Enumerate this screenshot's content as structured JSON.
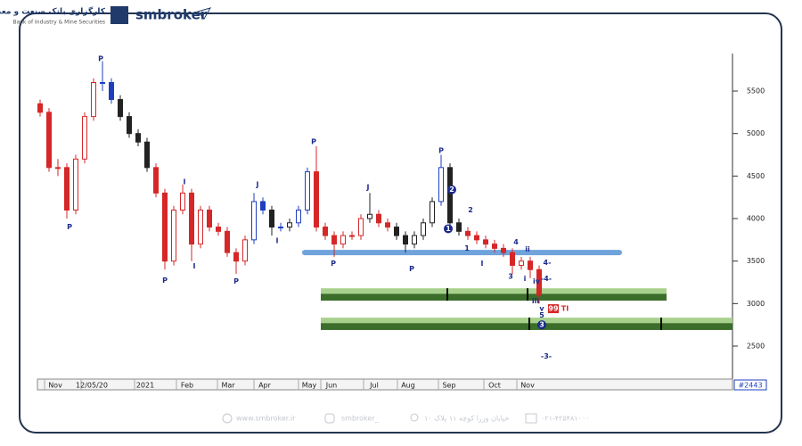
{
  "header": {
    "logo_text": "کارگزاری بانک صنعت و معدن",
    "logo_subtext": "Bank of Industry & Mine Securities",
    "brand": "smbroker"
  },
  "footer": {
    "website": "www.smbroker.ir",
    "instagram": "smbroker_",
    "address": "خیابان وزرا کوچه ۱۱ پلاک ۱۰",
    "phone": "۰۲۱-۴۲۵۴۸۱۰۰۰"
  },
  "chart_data": {
    "type": "candlestick",
    "ohlc": [
      [
        5350,
        5400,
        5200,
        5250
      ],
      [
        5250,
        5300,
        4550,
        4600
      ],
      [
        4600,
        4700,
        4500,
        4600
      ],
      [
        4600,
        4650,
        4000,
        4100
      ],
      [
        4100,
        4750,
        4050,
        4700
      ],
      [
        4700,
        5250,
        4650,
        5200
      ],
      [
        5200,
        5650,
        5150,
        5600
      ],
      [
        5600,
        5850,
        5500,
        5600
      ],
      [
        5600,
        5650,
        5350,
        5400
      ],
      [
        5400,
        5450,
        5150,
        5200
      ],
      [
        5200,
        5250,
        4950,
        5000
      ],
      [
        5000,
        5050,
        4850,
        4900
      ],
      [
        4900,
        4950,
        4550,
        4600
      ],
      [
        4600,
        4650,
        4250,
        4300
      ],
      [
        4300,
        4350,
        3400,
        3500
      ],
      [
        3500,
        4150,
        3450,
        4100
      ],
      [
        4100,
        4400,
        4050,
        4300
      ],
      [
        4300,
        4350,
        3500,
        3700
      ],
      [
        3700,
        4150,
        3650,
        4100
      ],
      [
        4100,
        4150,
        3850,
        3900
      ],
      [
        3900,
        3950,
        3800,
        3850
      ],
      [
        3850,
        3900,
        3550,
        3600
      ],
      [
        3600,
        3650,
        3350,
        3500
      ],
      [
        3500,
        3800,
        3450,
        3750
      ],
      [
        3750,
        4300,
        3700,
        4200
      ],
      [
        4200,
        4250,
        4050,
        4100
      ],
      [
        4100,
        4150,
        3800,
        3900
      ],
      [
        3900,
        3950,
        3850,
        3900
      ],
      [
        3900,
        4000,
        3850,
        3950
      ],
      [
        3950,
        4150,
        3900,
        4100
      ],
      [
        4100,
        4600,
        4050,
        4550
      ],
      [
        4550,
        4850,
        3850,
        3900
      ],
      [
        3900,
        3950,
        3750,
        3800
      ],
      [
        3800,
        3850,
        3550,
        3700
      ],
      [
        3700,
        3850,
        3650,
        3800
      ],
      [
        3800,
        3850,
        3750,
        3800
      ],
      [
        3800,
        4050,
        3750,
        4000
      ],
      [
        4000,
        4300,
        3950,
        4050
      ],
      [
        4050,
        4100,
        3900,
        3950
      ],
      [
        3950,
        4000,
        3850,
        3900
      ],
      [
        3900,
        3950,
        3750,
        3800
      ],
      [
        3800,
        3850,
        3600,
        3700
      ],
      [
        3700,
        3850,
        3650,
        3800
      ],
      [
        3800,
        4000,
        3750,
        3950
      ],
      [
        3950,
        4250,
        3900,
        4200
      ],
      [
        4200,
        4750,
        4150,
        4600
      ],
      [
        4600,
        4650,
        3900,
        3950
      ],
      [
        3950,
        4000,
        3800,
        3850
      ],
      [
        3850,
        3900,
        3750,
        3800
      ],
      [
        3800,
        3850,
        3700,
        3750
      ],
      [
        3750,
        3800,
        3650,
        3700
      ],
      [
        3700,
        3750,
        3600,
        3650
      ],
      [
        3650,
        3700,
        3550,
        3600
      ],
      [
        3600,
        3650,
        3350,
        3450
      ],
      [
        3450,
        3550,
        3400,
        3500
      ],
      [
        3500,
        3550,
        3300,
        3400
      ],
      [
        3400,
        3450,
        3000,
        3100
      ]
    ],
    "candle_colors": [
      "#d62728",
      "#d62728",
      "#d62728",
      "#d62728",
      "#d62728",
      "#d62728",
      "#d62728",
      "#1f3fbf",
      "#1f3fbf",
      "#222",
      "#222",
      "#222",
      "#222",
      "#d62728",
      "#d62728",
      "#d62728",
      "#d62728",
      "#d62728",
      "#d62728",
      "#d62728",
      "#d62728",
      "#d62728",
      "#d62728",
      "#d62728",
      "#1f3fbf",
      "#1f3fbf",
      "#222",
      "#1f3fbf",
      "#222",
      "#1f3fbf",
      "#1f3fbf",
      "#d62728",
      "#d62728",
      "#d62728",
      "#d62728",
      "#d62728",
      "#d62728",
      "#222",
      "#d62728",
      "#d62728",
      "#222",
      "#222",
      "#222",
      "#222",
      "#222",
      "#1f3fbf",
      "#222",
      "#222",
      "#d62728",
      "#d62728",
      "#d62728",
      "#d62728",
      "#d62728",
      "#d62728",
      "#d62728",
      "#d62728",
      "#d62728"
    ],
    "xlim": [
      -0.3,
      77.7
    ],
    "xticks": [
      {
        "value": 1.7,
        "label": "Nov"
      },
      {
        "value": 5.8,
        "label": "12/05/20"
      },
      {
        "value": 11.8,
        "label": "2021"
      },
      {
        "value": 16.5,
        "label": "Feb"
      },
      {
        "value": 21.1,
        "label": "Mar"
      },
      {
        "value": 25.2,
        "label": "Apr"
      },
      {
        "value": 30.2,
        "label": "May"
      },
      {
        "value": 32.7,
        "label": "Jun"
      },
      {
        "value": 37.5,
        "label": "Jul"
      },
      {
        "value": 41.3,
        "label": "Aug"
      },
      {
        "value": 45.9,
        "label": "Sep"
      },
      {
        "value": 51,
        "label": "Oct"
      },
      {
        "value": 54.7,
        "label": "Nov"
      }
    ],
    "ylim": [
      2112,
      5941
    ],
    "yticks": [
      2500,
      3000,
      3500,
      4000,
      4500,
      5000,
      5500
    ],
    "last_bar_label": "#2443",
    "levels": [
      {
        "y": 3600,
        "from": 29.7,
        "to": 65,
        "color": "#6fa3dc"
      }
    ],
    "zones": [
      {
        "top": 3180,
        "bottom": 3035,
        "from": 31.5,
        "to": 70.3,
        "color": "#a9d18e",
        "inner_color": "#3b6e2a",
        "marks": [
          45.7,
          54.7
        ]
      },
      {
        "top": 2835,
        "bottom": 2690,
        "from": 31.5,
        "to": 77.7,
        "color": "#a9d18e",
        "inner_color": "#3b6e2a",
        "marks": [
          54.9,
          69.7
        ]
      }
    ],
    "annotations": [
      {
        "text": "P",
        "x": 6.8,
        "y": 5880
      },
      {
        "text": "P",
        "x": 3.3,
        "y": 3900
      },
      {
        "text": "P",
        "x": 14,
        "y": 3270
      },
      {
        "text": "I",
        "x": 16.2,
        "y": 4430
      },
      {
        "text": "I",
        "x": 17.3,
        "y": 3440
      },
      {
        "text": "P",
        "x": 22,
        "y": 3260
      },
      {
        "text": "J",
        "x": 24.4,
        "y": 4400
      },
      {
        "text": "I",
        "x": 26.6,
        "y": 3740
      },
      {
        "text": "P",
        "x": 30.7,
        "y": 4900
      },
      {
        "text": "P",
        "x": 32.9,
        "y": 3470
      },
      {
        "text": "J",
        "x": 36.8,
        "y": 4370
      },
      {
        "text": "P",
        "x": 41.7,
        "y": 3410
      },
      {
        "text": "P",
        "x": 45,
        "y": 4800
      },
      {
        "text": "2",
        "x": 46.2,
        "y": 4340,
        "circle": true
      },
      {
        "text": "1",
        "x": 45.8,
        "y": 3880,
        "circle": true
      },
      {
        "text": "2",
        "x": 48.3,
        "y": 4100
      },
      {
        "text": "1",
        "x": 47.9,
        "y": 3650
      },
      {
        "text": "I",
        "x": 49.6,
        "y": 3470
      },
      {
        "text": "3",
        "x": 52.8,
        "y": 3320
      },
      {
        "text": "4",
        "x": 53.4,
        "y": 3720
      },
      {
        "text": "ii",
        "x": 54.7,
        "y": 3640
      },
      {
        "text": "i",
        "x": 54.4,
        "y": 3290
      },
      {
        "text": "iv",
        "x": 55.7,
        "y": 3260
      },
      {
        "text": "iii",
        "x": 55.6,
        "y": 3030
      },
      {
        "text": "v",
        "x": 56.3,
        "y": 2940
      },
      {
        "text": "5",
        "x": 56.3,
        "y": 2860
      },
      {
        "text": "3",
        "x": 56.3,
        "y": 2750,
        "circle": true
      },
      {
        "text": "4-",
        "x": 56.9,
        "y": 3480
      },
      {
        "text": "-4-",
        "x": 56.8,
        "y": 3290
      },
      {
        "text": "-3-",
        "x": 56.8,
        "y": 2380
      },
      {
        "text": "99",
        "x": 57.6,
        "y": 2940,
        "box": "#d62728"
      },
      {
        "text": "TI",
        "x": 58.9,
        "y": 2940
      }
    ]
  }
}
